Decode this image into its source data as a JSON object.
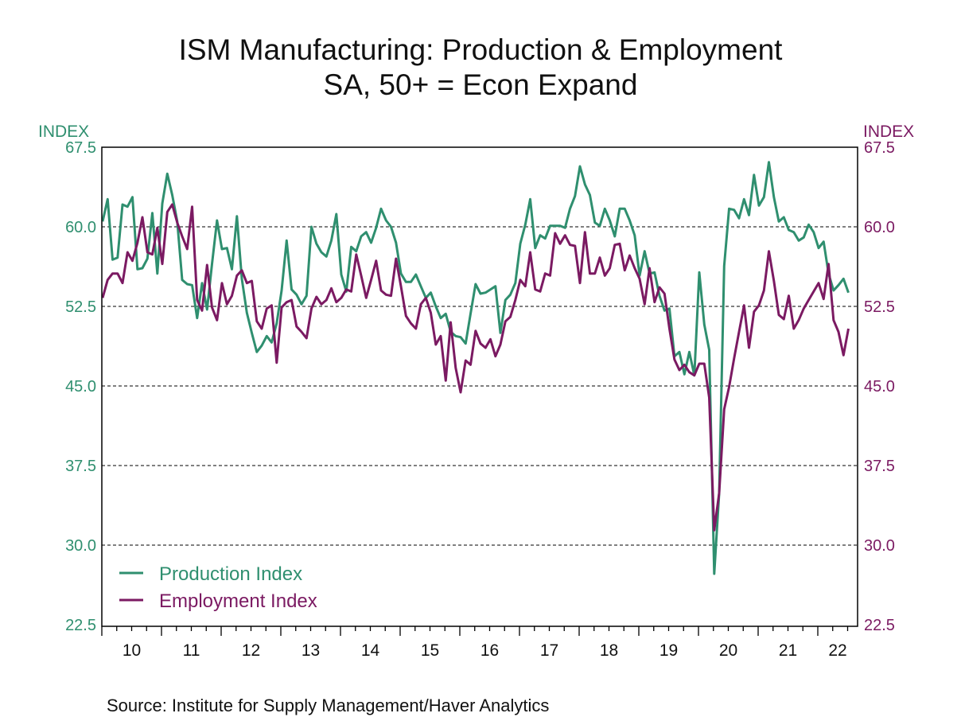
{
  "chart_data": {
    "type": "line",
    "title": "ISM Manufacturing: Production & Employment",
    "subtitle": "SA, 50+ = Econ Expand",
    "ylabel_left": "INDEX",
    "ylabel_right": "INDEX",
    "ylim": [
      22.5,
      67.5
    ],
    "yticks": [
      "67.5",
      "60.0",
      "52.5",
      "45.0",
      "37.5",
      "30.0",
      "22.5"
    ],
    "xtick_labels": [
      "10",
      "11",
      "12",
      "13",
      "14",
      "15",
      "16",
      "17",
      "18",
      "19",
      "20",
      "21",
      "22"
    ],
    "x_start": "2010-01",
    "x_end": "2022-07",
    "frequency": "monthly",
    "grid": "horizontal dashed",
    "legend_position": "bottom-left",
    "source": "Source:  Institute for Supply Management/Haver Analytics",
    "series": [
      {
        "name": "Production Index",
        "color": "#2f8f6f",
        "axis": "left",
        "values": [
          60.5,
          62.6,
          56.9,
          57.1,
          62.1,
          61.9,
          62.8,
          56.0,
          56.1,
          57.0,
          61.3,
          55.6,
          62.2,
          65.0,
          63.0,
          60.5,
          55.0,
          54.6,
          54.5,
          51.4,
          54.7,
          52.2,
          56.5,
          60.6,
          57.9,
          58.0,
          56.0,
          61.0,
          55.1,
          51.9,
          50.0,
          48.2,
          48.8,
          49.7,
          49.1,
          50.9,
          54.0,
          58.7,
          54.1,
          53.6,
          52.7,
          53.5,
          60.0,
          58.4,
          57.6,
          57.2,
          58.7,
          61.2,
          55.5,
          53.9,
          58.1,
          57.7,
          59.1,
          59.5,
          58.5,
          59.9,
          61.7,
          60.6,
          60.0,
          58.5,
          55.6,
          54.8,
          54.8,
          55.5,
          54.4,
          53.3,
          53.8,
          52.5,
          51.4,
          51.8,
          50.1,
          49.7,
          49.6,
          49.0,
          51.8,
          54.6,
          53.7,
          53.8,
          54.1,
          54.4,
          50.0,
          53.1,
          53.6,
          54.7,
          58.4,
          60.2,
          62.6,
          58.0,
          59.2,
          58.9,
          60.1,
          60.1,
          60.1,
          59.9,
          61.7,
          62.9,
          65.7,
          64.0,
          63.0,
          60.4,
          60.1,
          61.7,
          60.6,
          59.1,
          61.7,
          61.7,
          60.6,
          59.2,
          55.4,
          57.7,
          55.6,
          55.7,
          53.5,
          52.1,
          52.3,
          47.8,
          48.2,
          46.1,
          48.2,
          46.0,
          55.7,
          50.8,
          48.4,
          27.3,
          34.9,
          56.3,
          61.7,
          61.6,
          60.8,
          62.6,
          61.1,
          64.9,
          62.0,
          62.8,
          66.1,
          62.8,
          60.5,
          60.9,
          59.7,
          59.5,
          58.7,
          59.0,
          60.2,
          59.5,
          58.0,
          58.6,
          55.6,
          54.0,
          54.5,
          55.1,
          53.8
        ]
      },
      {
        "name": "Employment Index",
        "color": "#7b1a62",
        "axis": "right",
        "values": [
          53.3,
          55.0,
          55.6,
          55.6,
          54.7,
          57.6,
          56.8,
          58.5,
          60.9,
          57.6,
          57.4,
          59.9,
          56.5,
          61.4,
          62.1,
          60.4,
          59.1,
          57.9,
          61.9,
          53.1,
          52.1,
          56.4,
          52.4,
          51.2,
          54.7,
          52.7,
          53.5,
          55.4,
          55.9,
          54.7,
          54.9,
          51.1,
          50.4,
          52.3,
          52.6,
          47.2,
          52.4,
          52.9,
          53.1,
          50.6,
          50.1,
          49.5,
          52.3,
          53.4,
          52.7,
          53.1,
          54.2,
          52.9,
          53.3,
          54.1,
          53.9,
          57.4,
          55.4,
          53.3,
          55.0,
          56.8,
          54.0,
          53.6,
          53.5,
          57.0,
          54.4,
          51.6,
          50.9,
          50.4,
          52.7,
          53.3,
          51.9,
          48.9,
          49.7,
          45.5,
          51.0,
          46.7,
          44.4,
          47.4,
          47.0,
          50.2,
          49.0,
          48.6,
          49.4,
          47.8,
          48.9,
          51.1,
          51.5,
          53.1,
          55.0,
          54.4,
          57.6,
          54.1,
          53.9,
          55.6,
          55.4,
          59.4,
          58.4,
          59.2,
          58.3,
          58.2,
          54.7,
          59.5,
          55.6,
          55.6,
          57.1,
          55.4,
          56.1,
          58.3,
          58.4,
          55.9,
          57.3,
          56.1,
          55.1,
          52.7,
          56.1,
          52.9,
          54.3,
          53.7,
          50.4,
          47.5,
          46.5,
          47.0,
          46.3,
          46.0,
          47.1,
          47.1,
          43.9,
          31.4,
          34.9,
          42.8,
          44.9,
          47.6,
          50.1,
          52.6,
          48.6,
          52.0,
          52.6,
          54.0,
          57.7,
          54.9,
          51.7,
          51.3,
          53.5,
          50.4,
          51.2,
          52.3,
          53.1,
          53.9,
          54.7,
          53.2,
          56.5,
          51.2,
          50.1,
          47.9,
          50.4
        ]
      }
    ]
  }
}
